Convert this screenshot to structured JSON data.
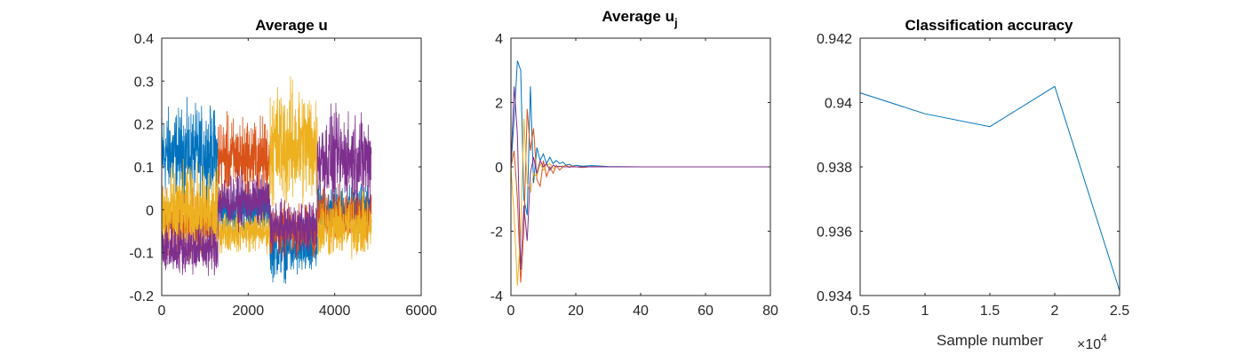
{
  "chart_data": [
    {
      "type": "line",
      "title": "Average u",
      "title_sub": "",
      "xlabel": "",
      "ylabel": "",
      "xlim": [
        0,
        6000
      ],
      "ylim": [
        -0.2,
        0.4
      ],
      "xticks": [
        0,
        2000,
        4000,
        6000
      ],
      "yticks": [
        -0.2,
        -0.1,
        0,
        0.1,
        0.2,
        0.3,
        0.4
      ],
      "xtick_labels": [
        "0",
        "2000",
        "4000",
        "6000"
      ],
      "ytick_labels": [
        "-0.2",
        "-0.1",
        "0",
        "0.1",
        "0.2",
        "0.3",
        "0.4"
      ],
      "grid": false,
      "x_range": [
        0,
        4850
      ],
      "segments": [
        {
          "from": 0,
          "to": 1300
        },
        {
          "from": 1300,
          "to": 2500
        },
        {
          "from": 2500,
          "to": 3600
        },
        {
          "from": 3600,
          "to": 4850
        }
      ],
      "series": [
        {
          "color": "#0072BD",
          "segment_means": [
            0.13,
            0.0,
            -0.09,
            0.0
          ],
          "noise": [
            0.09,
            0.05,
            0.06,
            0.05
          ]
        },
        {
          "color": "#D95319",
          "segment_means": [
            -0.03,
            0.12,
            -0.05,
            -0.01
          ],
          "noise": [
            0.06,
            0.08,
            0.05,
            0.05
          ]
        },
        {
          "color": "#EDB120",
          "segment_means": [
            -0.01,
            -0.05,
            0.15,
            -0.04
          ],
          "noise": [
            0.09,
            0.04,
            0.12,
            0.06
          ]
        },
        {
          "color": "#7E2F8E",
          "segment_means": [
            -0.09,
            0.02,
            -0.04,
            0.12
          ],
          "noise": [
            0.05,
            0.05,
            0.05,
            0.09
          ]
        }
      ]
    },
    {
      "type": "line",
      "title": "Average u",
      "title_sub": "j",
      "xlabel": "",
      "ylabel": "",
      "xlim": [
        0,
        80
      ],
      "ylim": [
        -4,
        4
      ],
      "xticks": [
        0,
        20,
        40,
        60,
        80
      ],
      "yticks": [
        -4,
        -2,
        0,
        2,
        4
      ],
      "xtick_labels": [
        "0",
        "20",
        "40",
        "60",
        "80"
      ],
      "ytick_labels": [
        "-4",
        "-2",
        "0",
        "2",
        "4"
      ],
      "grid": false,
      "series": [
        {
          "color": "#0072BD",
          "x": [
            0,
            1,
            2,
            3,
            4,
            5,
            6,
            7,
            8,
            9,
            10,
            11,
            12,
            13,
            14,
            15,
            16,
            17,
            18,
            19,
            20,
            22,
            25,
            30,
            40,
            80
          ],
          "y": [
            0,
            1.5,
            3.3,
            3.0,
            -1.0,
            -1.5,
            2.5,
            -0.5,
            0.6,
            0.2,
            0.4,
            0.1,
            0.3,
            0.1,
            0.2,
            0.1,
            0.15,
            0.05,
            0.08,
            0.02,
            0.05,
            0.02,
            0.04,
            0.01,
            0.0,
            0.0
          ]
        },
        {
          "color": "#D95319",
          "x": [
            0,
            1,
            2,
            3,
            4,
            5,
            6,
            7,
            8,
            9,
            10,
            11,
            12,
            13,
            14,
            15,
            16,
            17,
            18,
            19,
            20,
            22,
            25,
            30,
            40,
            80
          ],
          "y": [
            0,
            0.5,
            -1.0,
            -3.6,
            -2.0,
            1.8,
            0.5,
            1.2,
            -0.4,
            -0.6,
            0.2,
            -0.3,
            0.0,
            -0.2,
            0.05,
            -0.1,
            0.0,
            0.05,
            -0.02,
            0.03,
            0.0,
            -0.02,
            0.01,
            0.0,
            0.0,
            0.0
          ]
        },
        {
          "color": "#EDB120",
          "x": [
            0,
            1,
            2,
            3,
            4,
            5,
            6,
            7,
            8,
            9,
            10,
            11,
            12,
            13,
            14,
            15,
            16,
            17,
            18,
            19,
            20,
            22,
            25,
            30,
            40,
            80
          ],
          "y": [
            0,
            -1.5,
            -3.7,
            -2.0,
            1.5,
            -0.5,
            -0.8,
            -0.2,
            -0.3,
            0.1,
            -0.1,
            0.05,
            0.1,
            -0.05,
            0.02,
            0.0,
            0.03,
            0.0,
            0.01,
            0.0,
            0.0,
            0.0,
            0.0,
            0.0,
            0.0,
            0.0
          ]
        },
        {
          "color": "#7E2F8E",
          "x": [
            0,
            1,
            2,
            3,
            4,
            5,
            6,
            7,
            8,
            9,
            10,
            11,
            12,
            13,
            14,
            15,
            16,
            17,
            18,
            19,
            20,
            22,
            25,
            30,
            40,
            80
          ],
          "y": [
            0,
            2.5,
            1.0,
            -3.2,
            -1.2,
            -2.3,
            -0.2,
            0.3,
            -0.2,
            0.2,
            0.0,
            0.1,
            -0.1,
            0.05,
            0.0,
            0.02,
            0.0,
            0.0,
            0.0,
            0.0,
            0.0,
            0.0,
            0.0,
            0.0,
            0.0,
            0.0
          ]
        }
      ]
    },
    {
      "type": "line",
      "title": "Classification accuracy",
      "title_sub": "",
      "xlabel": "Sample number",
      "ylabel": "",
      "xlim": [
        5000,
        25000
      ],
      "ylim": [
        0.934,
        0.942
      ],
      "xticks": [
        5000,
        10000,
        15000,
        20000,
        25000
      ],
      "yticks": [
        0.934,
        0.936,
        0.938,
        0.94,
        0.942
      ],
      "xtick_labels": [
        "0.5",
        "1",
        "1.5",
        "2",
        "2.5"
      ],
      "ytick_labels": [
        "0.934",
        "0.936",
        "0.938",
        "0.94",
        "0.942"
      ],
      "x_multiplier_base": "×10",
      "x_multiplier_exp": "4",
      "grid": false,
      "series": [
        {
          "color": "#0072BD",
          "x": [
            5000,
            10000,
            15000,
            20000,
            25000
          ],
          "y": [
            0.9403,
            0.93965,
            0.93925,
            0.9405,
            0.93415
          ]
        }
      ]
    }
  ]
}
